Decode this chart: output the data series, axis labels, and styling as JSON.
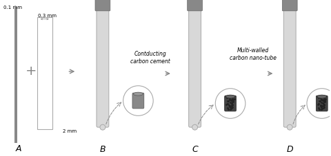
{
  "bg_color": "#ffffff",
  "label_A": "A",
  "label_B": "B",
  "label_C": "C",
  "label_D": "D",
  "dim_01mm": "0.1 mm",
  "dim_03mm": "0.3 mm",
  "dim_2mm": "2 mm",
  "text_conducting": "Contducting\ncarbon cement",
  "text_mwcnt": "Multi-walled\ncarbon nano-tube",
  "needle_color": "#888888",
  "tube_body_color": "#d8d8d8",
  "tube_edge_color": "#aaaaaa",
  "handle_color": "#888888",
  "tip_color": "#888888",
  "carbon_cement_color": "#888888",
  "mwcnt_color": "#444444",
  "arrow_color": "#888888",
  "label_color": "#000000",
  "circle_color": "#aaaaaa"
}
